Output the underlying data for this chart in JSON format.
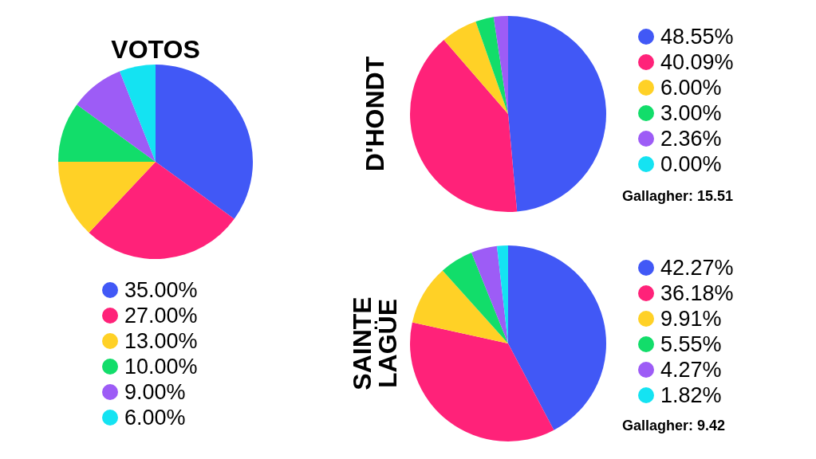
{
  "chart_data": [
    {
      "type": "pie",
      "title": "VOTOS",
      "categories": [
        "35.00%",
        "27.00%",
        "13.00%",
        "10.00%",
        "9.00%",
        "6.00%"
      ],
      "values": [
        35,
        27,
        13,
        10,
        9,
        6
      ],
      "colors": [
        "#4158f6",
        "#ff2279",
        "#ffd126",
        "#12dd6a",
        "#9d5cf6",
        "#14e3f2"
      ],
      "legend": "bottom"
    },
    {
      "type": "pie",
      "title": "D'HONDT",
      "categories": [
        "48.55%",
        "40.09%",
        "6.00%",
        "3.00%",
        "2.36%",
        "0.00%"
      ],
      "values": [
        48.55,
        40.09,
        6.0,
        3.0,
        2.36,
        0.0
      ],
      "colors": [
        "#4158f6",
        "#ff2279",
        "#ffd126",
        "#12dd6a",
        "#9d5cf6",
        "#14e3f2"
      ],
      "legend": "right",
      "annotations": [
        "Gallagher: 15.51"
      ]
    },
    {
      "type": "pie",
      "title": "SAINTE LAGÜE",
      "categories": [
        "42.27%",
        "36.18%",
        "9.91%",
        "5.55%",
        "4.27%",
        "1.82%"
      ],
      "values": [
        42.27,
        36.18,
        9.91,
        5.55,
        4.27,
        1.82
      ],
      "colors": [
        "#4158f6",
        "#ff2279",
        "#ffd126",
        "#12dd6a",
        "#9d5cf6",
        "#14e3f2"
      ],
      "legend": "right",
      "annotations": [
        "Gallagher: 9.42"
      ]
    }
  ]
}
